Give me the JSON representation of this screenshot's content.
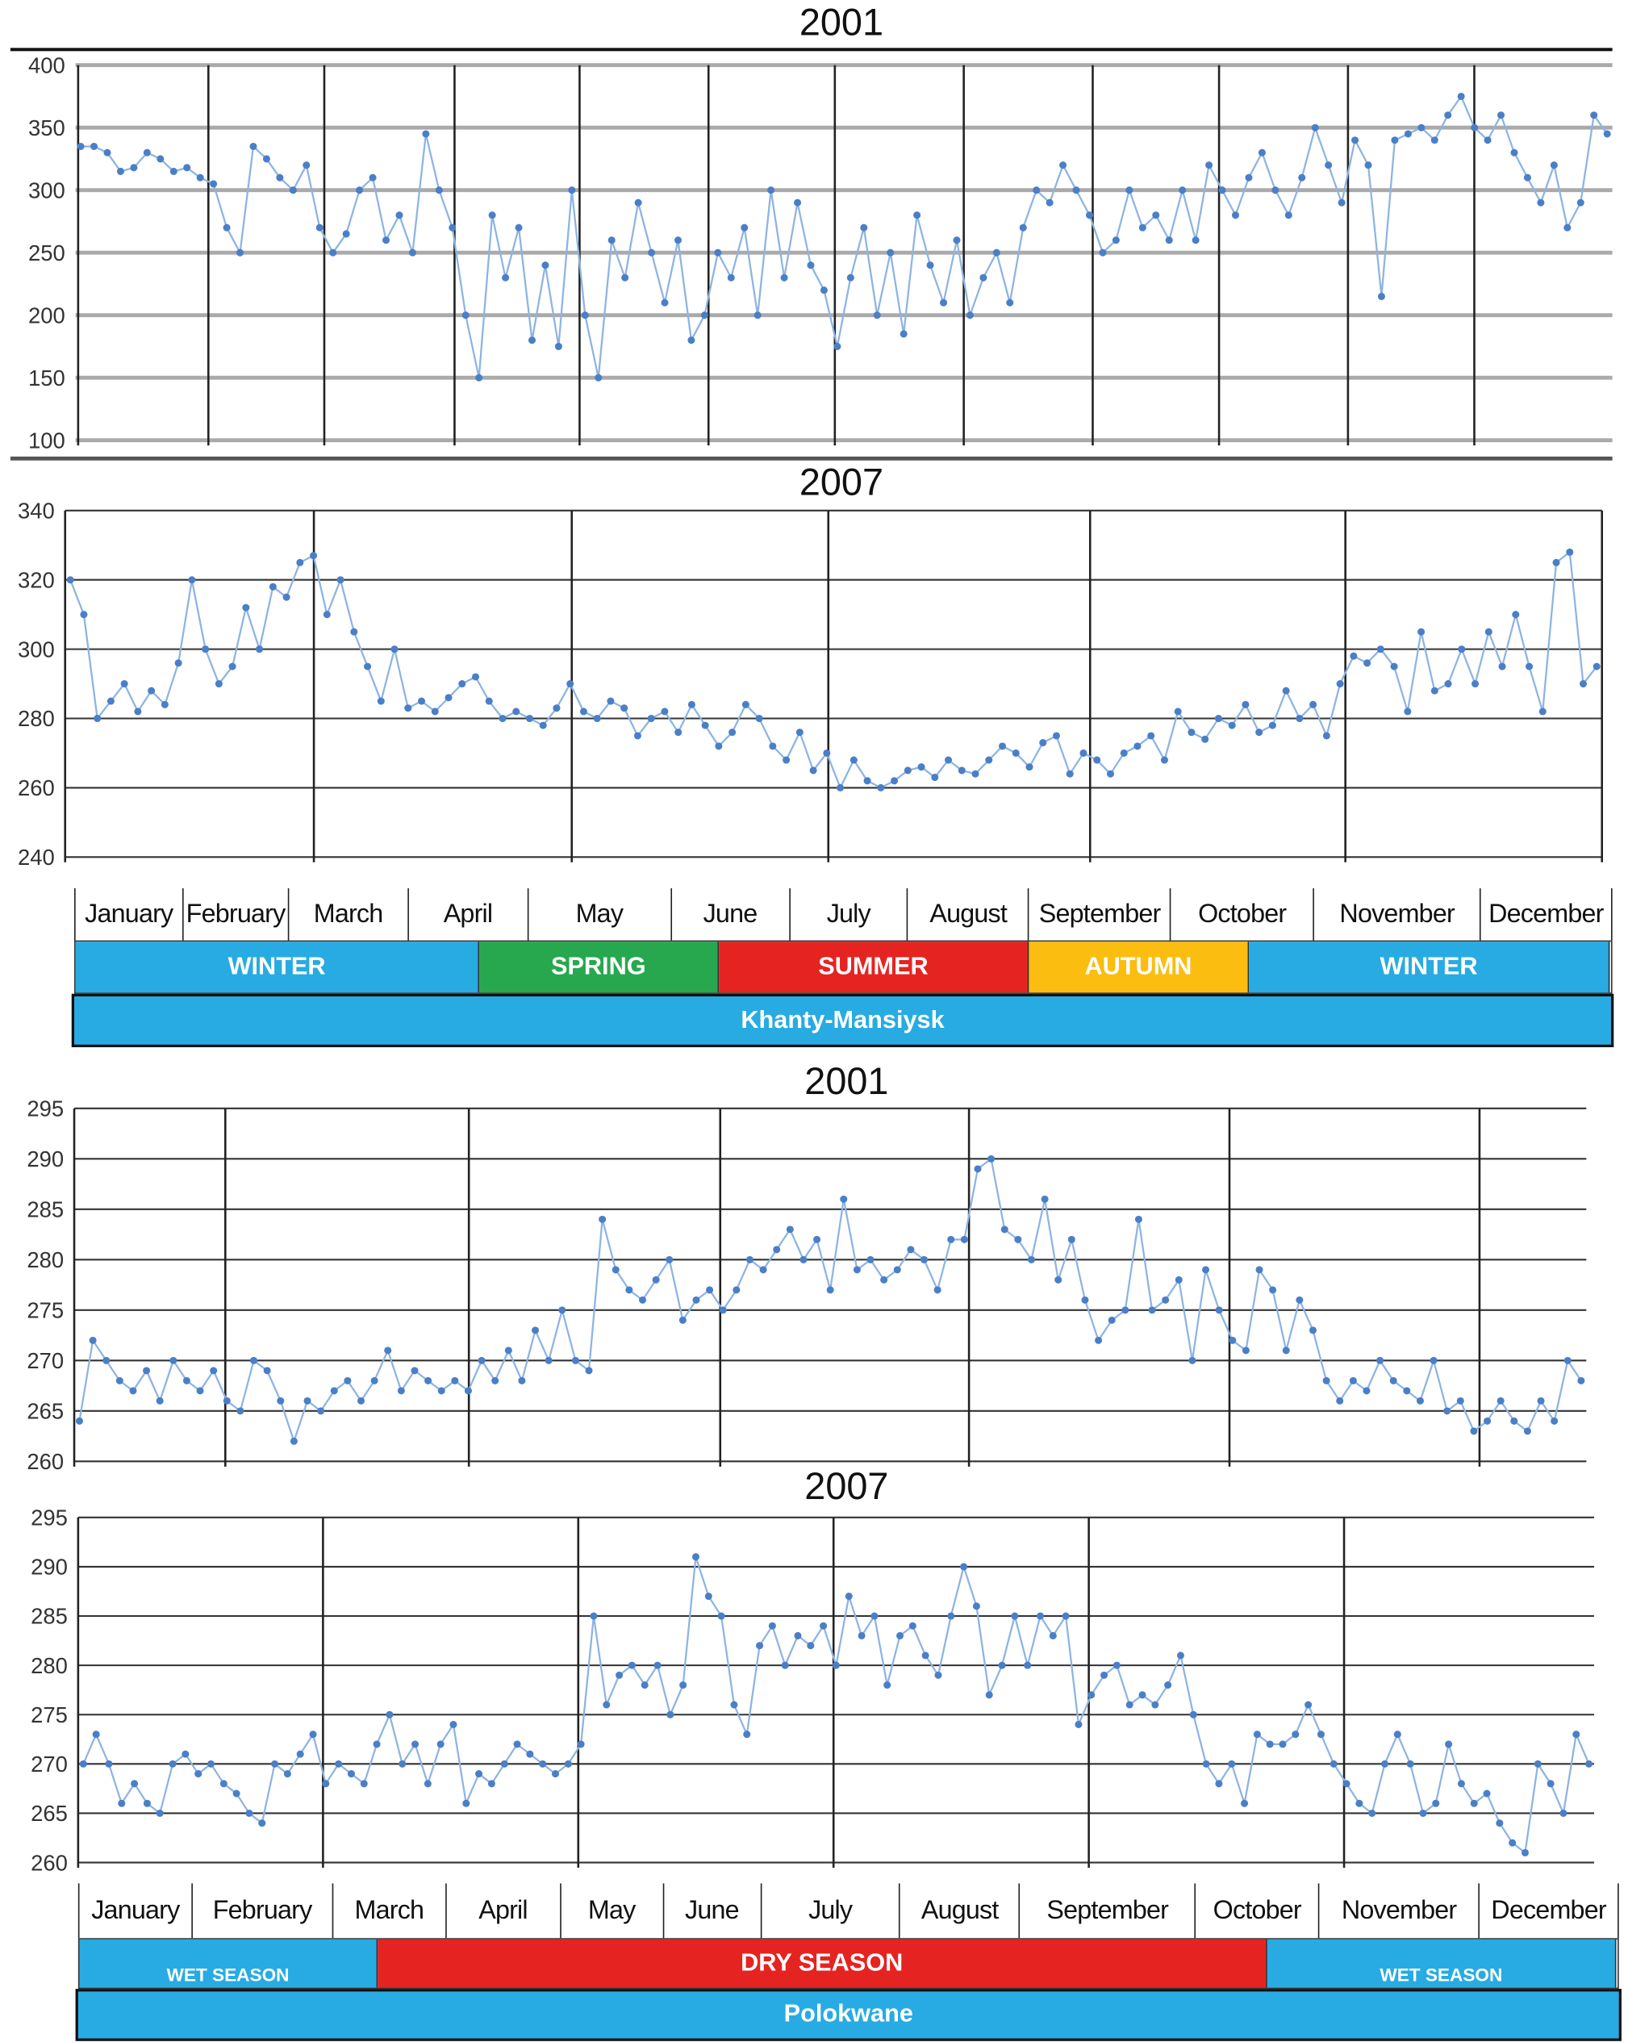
{
  "colors": {
    "line": "#8db4e2",
    "marker": "#4a7fc8",
    "grid": "#8a8a8a",
    "winter": "#28abe2",
    "spring": "#27a84f",
    "summer": "#e52421",
    "autumn": "#fbbd10",
    "wet": "#28abe2",
    "dry": "#e52421"
  },
  "khanty": {
    "location": "Khanty-Mansiysk",
    "months": [
      "January",
      "February",
      "March",
      "April",
      "May",
      "June",
      "July",
      "August",
      "September",
      "October",
      "November",
      "December"
    ],
    "seasons": [
      {
        "label": "WINTER",
        "color": "#28abe2"
      },
      {
        "label": "SPRING",
        "color": "#27a84f"
      },
      {
        "label": "SUMMER",
        "color": "#e52421"
      },
      {
        "label": "AUTUMN",
        "color": "#fbbd10"
      },
      {
        "label": "WINTER",
        "color": "#28abe2"
      }
    ]
  },
  "polokwane": {
    "location": "Polokwane",
    "months": [
      "January",
      "February",
      "March",
      "April",
      "May",
      "June",
      "July",
      "August",
      "September",
      "October",
      "November",
      "December"
    ],
    "seasons": [
      {
        "label": "WET SEASON",
        "color": "#28abe2"
      },
      {
        "label": "DRY SEASON",
        "color": "#e52421"
      },
      {
        "label": "WET SEASON",
        "color": "#28abe2"
      }
    ]
  },
  "chart_data": [
    {
      "type": "line",
      "title": "2001",
      "location": "Khanty-Mansiysk",
      "ylim": [
        100,
        400
      ],
      "yticks": [
        "100",
        "150",
        "200",
        "250",
        "300",
        "350",
        "400"
      ],
      "grid": true,
      "x": "daily samples Jan–Dec (approximate)",
      "values": [
        335,
        335,
        330,
        315,
        318,
        330,
        325,
        315,
        318,
        310,
        305,
        270,
        250,
        335,
        325,
        310,
        300,
        320,
        270,
        250,
        265,
        300,
        310,
        260,
        280,
        250,
        345,
        300,
        270,
        200,
        150,
        280,
        230,
        270,
        180,
        240,
        175,
        300,
        200,
        150,
        260,
        230,
        290,
        250,
        210,
        260,
        180,
        200,
        250,
        230,
        270,
        200,
        300,
        230,
        290,
        240,
        220,
        175,
        230,
        270,
        200,
        250,
        185,
        280,
        240,
        210,
        260,
        200,
        230,
        250,
        210,
        270,
        300,
        290,
        320,
        300,
        280,
        250,
        260,
        300,
        270,
        280,
        260,
        300,
        260,
        320,
        300,
        280,
        310,
        330,
        300,
        280,
        310,
        350,
        320,
        290,
        340,
        320,
        215,
        340,
        345,
        350,
        340,
        360,
        375,
        350,
        340,
        360,
        330,
        310,
        290,
        320,
        270,
        290,
        360,
        345
      ]
    },
    {
      "type": "line",
      "title": "2007",
      "location": "Khanty-Mansiysk",
      "ylim": [
        240,
        340
      ],
      "yticks": [
        "240",
        "260",
        "280",
        "300",
        "320",
        "340"
      ],
      "grid": true,
      "x": "daily samples Jan–Dec (approximate)",
      "values": [
        320,
        310,
        280,
        285,
        290,
        282,
        288,
        284,
        296,
        320,
        300,
        290,
        295,
        312,
        300,
        318,
        315,
        325,
        327,
        310,
        320,
        305,
        295,
        285,
        300,
        283,
        285,
        282,
        286,
        290,
        292,
        285,
        280,
        282,
        280,
        278,
        283,
        290,
        282,
        280,
        285,
        283,
        275,
        280,
        282,
        276,
        284,
        278,
        272,
        276,
        284,
        280,
        272,
        268,
        276,
        265,
        270,
        260,
        268,
        262,
        260,
        262,
        265,
        266,
        263,
        268,
        265,
        264,
        268,
        272,
        270,
        266,
        273,
        275,
        264,
        270,
        268,
        264,
        270,
        272,
        275,
        268,
        282,
        276,
        274,
        280,
        278,
        284,
        276,
        278,
        288,
        280,
        284,
        275,
        290,
        298,
        296,
        300,
        295,
        282,
        305,
        288,
        290,
        300,
        290,
        305,
        295,
        310,
        295,
        282,
        325,
        328,
        290,
        295
      ]
    },
    {
      "type": "line",
      "title": "2001",
      "location": "Polokwane",
      "ylim": [
        260,
        295
      ],
      "yticks": [
        "260",
        "265",
        "270",
        "275",
        "280",
        "285",
        "290",
        "295"
      ],
      "grid": true,
      "x": "daily samples Jan–Dec (approximate)",
      "values": [
        264,
        272,
        270,
        268,
        267,
        269,
        266,
        270,
        268,
        267,
        269,
        266,
        265,
        270,
        269,
        266,
        262,
        266,
        265,
        267,
        268,
        266,
        268,
        271,
        267,
        269,
        268,
        267,
        268,
        267,
        270,
        268,
        271,
        268,
        273,
        270,
        275,
        270,
        269,
        284,
        279,
        277,
        276,
        278,
        280,
        274,
        276,
        277,
        275,
        277,
        280,
        279,
        281,
        283,
        280,
        282,
        277,
        286,
        279,
        280,
        278,
        279,
        281,
        280,
        277,
        282,
        282,
        289,
        290,
        283,
        282,
        280,
        286,
        278,
        282,
        276,
        272,
        274,
        275,
        284,
        275,
        276,
        278,
        270,
        279,
        275,
        272,
        271,
        279,
        277,
        271,
        276,
        273,
        268,
        266,
        268,
        267,
        270,
        268,
        267,
        266,
        270,
        265,
        266,
        263,
        264,
        266,
        264,
        263,
        266,
        264,
        270,
        268
      ]
    },
    {
      "type": "line",
      "title": "2007",
      "location": "Polokwane",
      "ylim": [
        260,
        295
      ],
      "yticks": [
        "260",
        "265",
        "270",
        "275",
        "280",
        "285",
        "290",
        "295"
      ],
      "grid": true,
      "x": "daily samples Jan–Dec (approximate)",
      "values": [
        270,
        273,
        270,
        266,
        268,
        266,
        265,
        270,
        271,
        269,
        270,
        268,
        267,
        265,
        264,
        270,
        269,
        271,
        273,
        268,
        270,
        269,
        268,
        272,
        275,
        270,
        272,
        268,
        272,
        274,
        266,
        269,
        268,
        270,
        272,
        271,
        270,
        269,
        270,
        272,
        285,
        276,
        279,
        280,
        278,
        280,
        275,
        278,
        291,
        287,
        285,
        276,
        273,
        282,
        284,
        280,
        283,
        282,
        284,
        280,
        287,
        283,
        285,
        278,
        283,
        284,
        281,
        279,
        285,
        290,
        286,
        277,
        280,
        285,
        280,
        285,
        283,
        285,
        274,
        277,
        279,
        280,
        276,
        277,
        276,
        278,
        281,
        275,
        270,
        268,
        270,
        266,
        273,
        272,
        272,
        273,
        276,
        273,
        270,
        268,
        266,
        265,
        270,
        273,
        270,
        265,
        266,
        272,
        268,
        266,
        267,
        264,
        262,
        261,
        270,
        268,
        265,
        273,
        270
      ]
    }
  ]
}
